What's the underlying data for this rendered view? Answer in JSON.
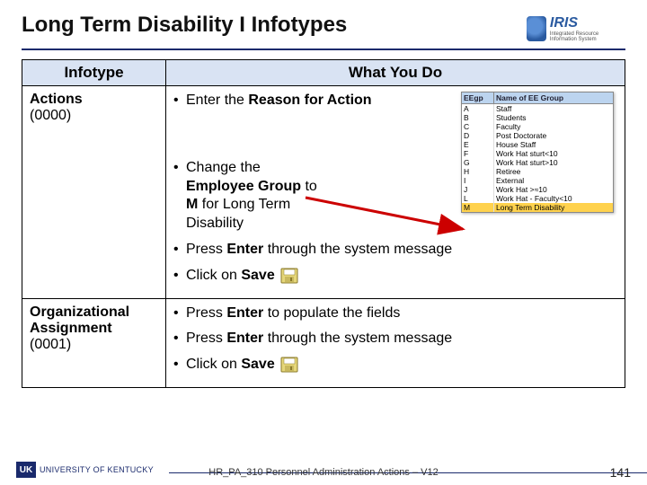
{
  "header": {
    "title": "Long Term Disability I Infotypes",
    "logo_text": "IRIS",
    "logo_sub": "Integrated Resource Information System"
  },
  "table": {
    "col1_header": "Infotype",
    "col2_header": "What You Do",
    "rows": [
      {
        "name": "Actions",
        "code": "(0000)",
        "bullets": [
          {
            "pre": "Enter the ",
            "bold": "Reason for Action",
            "post": ""
          },
          {
            "pre": "Change the ",
            "bold": "Employee Group",
            "post2_pre": " to ",
            "bold2": "M",
            "post2": " for Long Term Disability",
            "narrow": true
          },
          {
            "pre": "Press ",
            "bold": "Enter",
            "post": " through the system message"
          },
          {
            "pre": "Click on ",
            "bold": "Save",
            "save_icon": true
          }
        ]
      },
      {
        "name": "Organizational Assignment",
        "code": "(0001)",
        "bullets": [
          {
            "pre": "Press ",
            "bold": "Enter",
            "post": " to populate the fields"
          },
          {
            "pre": "Press ",
            "bold": "Enter",
            "post": " through the system message"
          },
          {
            "pre": "Click on ",
            "bold": "Save",
            "save_icon": true
          }
        ]
      }
    ]
  },
  "ee_group_popup": {
    "header_code": "EEgp",
    "header_name": "Name of EE Group",
    "rows": [
      {
        "code": "A",
        "name": "Staff"
      },
      {
        "code": "B",
        "name": "Students"
      },
      {
        "code": "C",
        "name": "Faculty"
      },
      {
        "code": "D",
        "name": "Post Doctorate"
      },
      {
        "code": "E",
        "name": "House Staff"
      },
      {
        "code": "F",
        "name": "Work Hat sturt<10"
      },
      {
        "code": "G",
        "name": "Work Hat sturt>10"
      },
      {
        "code": "H",
        "name": "Retiree"
      },
      {
        "code": "I",
        "name": "External"
      },
      {
        "code": "J",
        "name": "Work Hat >≈10"
      },
      {
        "code": "L",
        "name": "Work Hat - Faculty<10"
      },
      {
        "code": "M",
        "name": "Long Term Disability"
      }
    ],
    "selected_index": 11
  },
  "footer": {
    "uk_mark": "UK",
    "uk_text": "UNIVERSITY OF KENTUCKY",
    "doc": "HR_PA_310 Personnel Administration Actions – V12",
    "page": "141"
  },
  "colors": {
    "header_bg": "#d9e3f3",
    "border": "#000000",
    "underline": "#1a2a6c",
    "arrow": "#cc0000",
    "highlight": "#ffd24d"
  }
}
